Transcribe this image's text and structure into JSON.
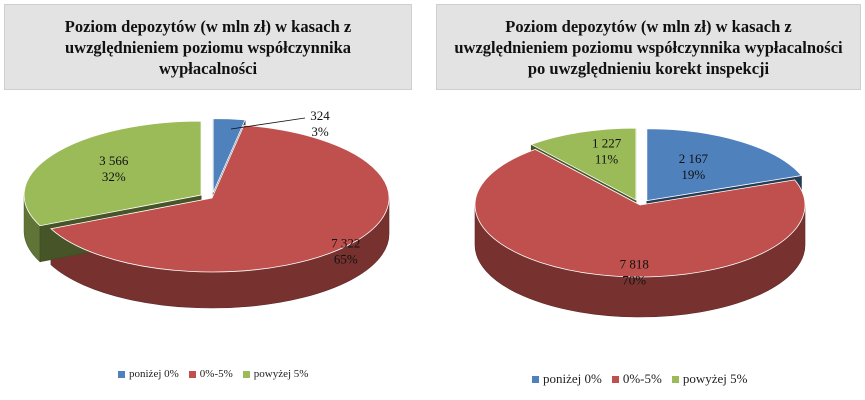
{
  "chart_data": [
    {
      "type": "pie",
      "title": "Poziom depozytów (w mln zł) w kasach z uwzględnieniem poziomu współczynnika wypłacalności",
      "categories": [
        "poniżej 0%",
        "0%-5%",
        "powyżej 5%"
      ],
      "values": [
        324,
        7322,
        3566
      ],
      "value_labels": [
        "324",
        "7 322",
        "3 566"
      ],
      "percent_labels": [
        "3%",
        "65%",
        "32%"
      ],
      "colors": [
        "#4f81bd",
        "#c0504d",
        "#9bbb59"
      ],
      "exploded": [
        true,
        false,
        true
      ],
      "legend_position": "bottom"
    },
    {
      "type": "pie",
      "title": "Poziom depozytów (w mln zł) w kasach z uwzględnieniem poziomu współczynnika wypłacalności po uwzględnieniu korekt inspekcji",
      "categories": [
        "poniżej 0%",
        "0%-5%",
        "powyżej 5%"
      ],
      "values": [
        2167,
        7818,
        1227
      ],
      "value_labels": [
        "2 167",
        "7 818",
        "1 227"
      ],
      "percent_labels": [
        "19%",
        "70%",
        "11%"
      ],
      "colors": [
        "#4f81bd",
        "#c0504d",
        "#9bbb59"
      ],
      "exploded": [
        true,
        false,
        true
      ],
      "legend_position": "bottom"
    }
  ]
}
